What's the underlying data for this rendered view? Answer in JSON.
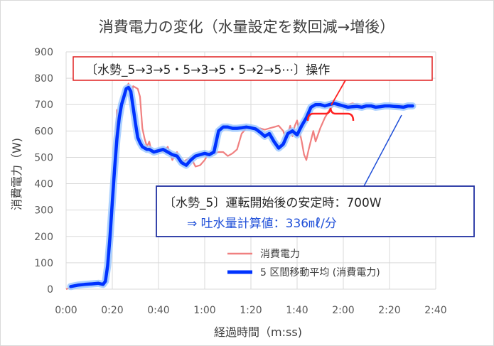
{
  "chart_data": {
    "type": "line",
    "title": "消費電力の変化（水量設定を数回減→増後）",
    "xlabel": "経過時間（m:ss)",
    "ylabel": "消費電力（W)",
    "xlim": [
      0,
      160
    ],
    "ylim": [
      0,
      900
    ],
    "x_ticks": [
      0,
      20,
      40,
      60,
      80,
      100,
      120,
      140,
      160
    ],
    "x_tick_labels": [
      "0:00",
      "0:20",
      "0:40",
      "1:00",
      "1:20",
      "1:40",
      "2:00",
      "2:20",
      "2:40"
    ],
    "y_ticks": [
      0,
      100,
      200,
      300,
      400,
      500,
      600,
      700,
      800,
      900
    ],
    "y_tick_labels": [
      "0",
      "100",
      "200",
      "300",
      "400",
      "500",
      "600",
      "700",
      "800",
      "900"
    ],
    "grid": true,
    "legend_position": "bottom-right",
    "series": [
      {
        "name": "消費電力",
        "color": "#f08080",
        "x": [
          0,
          3,
          6,
          9,
          12,
          15,
          17,
          19,
          21,
          22,
          23,
          25,
          27,
          28,
          29,
          31,
          32,
          33,
          34,
          35,
          36,
          37,
          38,
          40,
          42,
          44,
          46,
          48,
          50,
          52,
          54,
          56,
          58,
          60,
          62,
          64,
          66,
          68,
          70,
          72,
          74,
          76,
          78,
          80,
          82,
          84,
          86,
          88,
          90,
          92,
          94,
          95,
          96,
          97,
          98,
          99,
          100,
          102,
          103,
          104,
          105,
          107,
          108,
          110,
          112,
          114,
          116,
          118,
          120,
          122,
          124,
          126,
          128,
          130,
          132,
          134,
          136,
          138,
          140,
          142,
          144,
          146,
          148,
          150
        ],
        "values": [
          0,
          10,
          18,
          20,
          22,
          18,
          25,
          250,
          460,
          680,
          640,
          745,
          780,
          720,
          770,
          760,
          730,
          610,
          570,
          540,
          560,
          520,
          525,
          530,
          520,
          540,
          490,
          520,
          480,
          490,
          500,
          465,
          470,
          490,
          520,
          515,
          520,
          520,
          505,
          515,
          530,
          590,
          610,
          615,
          610,
          610,
          605,
          610,
          615,
          620,
          600,
          570,
          590,
          620,
          580,
          620,
          640,
          560,
          510,
          490,
          530,
          600,
          560,
          610,
          650,
          680,
          700,
          690,
          700,
          700,
          705,
          700,
          695,
          690,
          695,
          695,
          690,
          695,
          700,
          695,
          700,
          695,
          690,
          695
        ]
      },
      {
        "name": "5 区間移動平均 (消費電力)",
        "color": "#0033ff",
        "x": [
          2,
          5,
          8,
          11,
          14,
          16,
          17,
          18,
          19,
          20,
          21,
          22,
          23,
          24,
          25,
          26,
          27,
          28,
          29,
          30,
          31,
          32,
          33,
          34,
          35,
          36,
          37,
          38,
          40,
          42,
          44,
          46,
          48,
          50,
          52,
          54,
          56,
          58,
          60,
          62,
          64,
          66,
          68,
          70,
          72,
          74,
          76,
          78,
          80,
          82,
          84,
          86,
          88,
          90,
          92,
          94,
          96,
          98,
          100,
          102,
          104,
          106,
          108,
          110,
          112,
          114,
          116,
          118,
          120,
          122,
          124,
          126,
          128,
          130,
          132,
          134,
          136,
          138,
          140,
          142,
          144,
          146,
          148,
          150
        ],
        "values": [
          10,
          15,
          18,
          20,
          22,
          18,
          30,
          90,
          200,
          330,
          460,
          570,
          650,
          700,
          730,
          760,
          765,
          750,
          690,
          630,
          575,
          555,
          540,
          535,
          530,
          530,
          525,
          520,
          525,
          530,
          520,
          510,
          505,
          480,
          470,
          490,
          505,
          510,
          515,
          510,
          520,
          600,
          615,
          615,
          610,
          610,
          612,
          615,
          612,
          608,
          595,
          580,
          590,
          560,
          535,
          550,
          590,
          600,
          585,
          620,
          650,
          690,
          700,
          700,
          695,
          700,
          705,
          700,
          695,
          690,
          692,
          693,
          690,
          695,
          695,
          690,
          692,
          695,
          695,
          693,
          692,
          690,
          695,
          695
        ]
      }
    ],
    "annotations": {
      "box_top": "〔水勢_5→3→5・5→3→5・5→2→5⋯〕操作",
      "box_main_line1": "〔水勢_5〕運転開始後の安定時：700W",
      "box_main_line2": "⇒ 吐水量計算値：336㎖/分"
    }
  }
}
